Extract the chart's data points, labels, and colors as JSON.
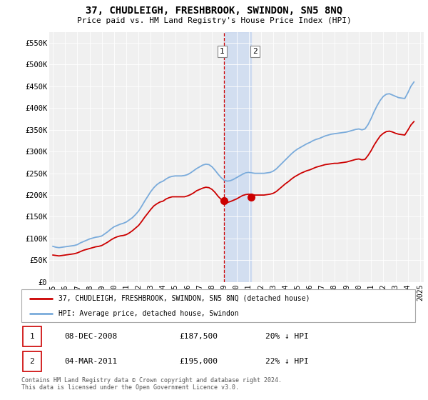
{
  "title": "37, CHUDLEIGH, FRESHBROOK, SWINDON, SN5 8NQ",
  "subtitle": "Price paid vs. HM Land Registry's House Price Index (HPI)",
  "ylim": [
    0,
    575000
  ],
  "yticks": [
    0,
    50000,
    100000,
    150000,
    200000,
    250000,
    300000,
    350000,
    400000,
    450000,
    500000,
    550000
  ],
  "ytick_labels": [
    "£0",
    "£50K",
    "£100K",
    "£150K",
    "£200K",
    "£250K",
    "£300K",
    "£350K",
    "£400K",
    "£450K",
    "£500K",
    "£550K"
  ],
  "background_color": "#f0f0f0",
  "grid_color": "#ffffff",
  "hpi_color": "#7aabdb",
  "price_color": "#cc0000",
  "shade_color": "#c8d8f0",
  "transaction_dot_color": "#cc0000",
  "t1_x": 2008.958,
  "t1_y": 187500,
  "t2_x": 2011.167,
  "t2_y": 195000,
  "transactions": [
    {
      "label": "1",
      "display": "08-DEC-2008",
      "price_str": "£187,500",
      "hpi_note": "20% ↓ HPI"
    },
    {
      "label": "2",
      "display": "04-MAR-2011",
      "price_str": "£195,000",
      "hpi_note": "22% ↓ HPI"
    }
  ],
  "legend_label_red": "37, CHUDLEIGH, FRESHBROOK, SWINDON, SN5 8NQ (detached house)",
  "legend_label_blue": "HPI: Average price, detached house, Swindon",
  "footer": "Contains HM Land Registry data © Crown copyright and database right 2024.\nThis data is licensed under the Open Government Licence v3.0.",
  "hpi_data_years": [
    1995.0,
    1995.25,
    1995.5,
    1995.75,
    1996.0,
    1996.25,
    1996.5,
    1996.75,
    1997.0,
    1997.25,
    1997.5,
    1997.75,
    1998.0,
    1998.25,
    1998.5,
    1998.75,
    1999.0,
    1999.25,
    1999.5,
    1999.75,
    2000.0,
    2000.25,
    2000.5,
    2000.75,
    2001.0,
    2001.25,
    2001.5,
    2001.75,
    2002.0,
    2002.25,
    2002.5,
    2002.75,
    2003.0,
    2003.25,
    2003.5,
    2003.75,
    2004.0,
    2004.25,
    2004.5,
    2004.75,
    2005.0,
    2005.25,
    2005.5,
    2005.75,
    2006.0,
    2006.25,
    2006.5,
    2006.75,
    2007.0,
    2007.25,
    2007.5,
    2007.75,
    2008.0,
    2008.25,
    2008.5,
    2008.75,
    2009.0,
    2009.25,
    2009.5,
    2009.75,
    2010.0,
    2010.25,
    2010.5,
    2010.75,
    2011.0,
    2011.25,
    2011.5,
    2011.75,
    2012.0,
    2012.25,
    2012.5,
    2012.75,
    2013.0,
    2013.25,
    2013.5,
    2013.75,
    2014.0,
    2014.25,
    2014.5,
    2014.75,
    2015.0,
    2015.25,
    2015.5,
    2015.75,
    2016.0,
    2016.25,
    2016.5,
    2016.75,
    2017.0,
    2017.25,
    2017.5,
    2017.75,
    2018.0,
    2018.25,
    2018.5,
    2018.75,
    2019.0,
    2019.25,
    2019.5,
    2019.75,
    2020.0,
    2020.25,
    2020.5,
    2020.75,
    2021.0,
    2021.25,
    2021.5,
    2021.75,
    2022.0,
    2022.25,
    2022.5,
    2022.75,
    2023.0,
    2023.25,
    2023.5,
    2023.75,
    2024.0,
    2024.25,
    2024.5
  ],
  "hpi_data_values": [
    82000,
    80000,
    79000,
    80000,
    81000,
    82000,
    83000,
    84000,
    86000,
    90000,
    93000,
    96000,
    99000,
    101000,
    103000,
    104000,
    106000,
    111000,
    116000,
    122000,
    127000,
    130000,
    133000,
    135000,
    138000,
    143000,
    148000,
    155000,
    163000,
    174000,
    186000,
    197000,
    208000,
    217000,
    224000,
    229000,
    232000,
    237000,
    241000,
    243000,
    244000,
    244000,
    244000,
    245000,
    247000,
    251000,
    256000,
    261000,
    265000,
    269000,
    271000,
    270000,
    265000,
    257000,
    248000,
    240000,
    234000,
    232000,
    233000,
    236000,
    240000,
    244000,
    248000,
    251000,
    252000,
    251000,
    250000,
    250000,
    250000,
    250000,
    251000,
    252000,
    255000,
    260000,
    267000,
    274000,
    281000,
    288000,
    295000,
    301000,
    306000,
    310000,
    314000,
    318000,
    321000,
    325000,
    328000,
    330000,
    333000,
    336000,
    338000,
    340000,
    341000,
    342000,
    343000,
    344000,
    345000,
    347000,
    349000,
    351000,
    352000,
    350000,
    352000,
    362000,
    376000,
    392000,
    406000,
    418000,
    427000,
    432000,
    433000,
    430000,
    427000,
    424000,
    423000,
    422000,
    435000,
    450000,
    460000
  ],
  "pp_data_years": [
    1995.0,
    1995.25,
    1995.5,
    1995.75,
    1996.0,
    1996.25,
    1996.5,
    1996.75,
    1997.0,
    1997.25,
    1997.5,
    1997.75,
    1998.0,
    1998.25,
    1998.5,
    1998.75,
    1999.0,
    1999.25,
    1999.5,
    1999.75,
    2000.0,
    2000.25,
    2000.5,
    2000.75,
    2001.0,
    2001.25,
    2001.5,
    2001.75,
    2002.0,
    2002.25,
    2002.5,
    2002.75,
    2003.0,
    2003.25,
    2003.5,
    2003.75,
    2004.0,
    2004.25,
    2004.5,
    2004.75,
    2005.0,
    2005.25,
    2005.5,
    2005.75,
    2006.0,
    2006.25,
    2006.5,
    2006.75,
    2007.0,
    2007.25,
    2007.5,
    2007.75,
    2008.0,
    2008.25,
    2008.5,
    2008.75,
    2009.0,
    2009.25,
    2009.5,
    2009.75,
    2010.0,
    2010.25,
    2010.5,
    2010.75,
    2011.0,
    2011.25,
    2011.5,
    2011.75,
    2012.0,
    2012.25,
    2012.5,
    2012.75,
    2013.0,
    2013.25,
    2013.5,
    2013.75,
    2014.0,
    2014.25,
    2014.5,
    2014.75,
    2015.0,
    2015.25,
    2015.5,
    2015.75,
    2016.0,
    2016.25,
    2016.5,
    2016.75,
    2017.0,
    2017.25,
    2017.5,
    2017.75,
    2018.0,
    2018.25,
    2018.5,
    2018.75,
    2019.0,
    2019.25,
    2019.5,
    2019.75,
    2020.0,
    2020.25,
    2020.5,
    2020.75,
    2021.0,
    2021.25,
    2021.5,
    2021.75,
    2022.0,
    2022.25,
    2022.5,
    2022.75,
    2023.0,
    2023.25,
    2023.5,
    2023.75,
    2024.0,
    2024.25,
    2024.5
  ],
  "pp_data_values": [
    62000,
    61000,
    60000,
    61000,
    62000,
    63000,
    64000,
    65000,
    67000,
    70000,
    73000,
    75000,
    77000,
    79000,
    81000,
    82000,
    84000,
    88000,
    92000,
    97000,
    101000,
    104000,
    106000,
    107000,
    109000,
    113000,
    118000,
    124000,
    130000,
    139000,
    149000,
    158000,
    167000,
    175000,
    180000,
    184000,
    186000,
    191000,
    194000,
    196000,
    196000,
    196000,
    196000,
    196000,
    198000,
    201000,
    205000,
    210000,
    213000,
    216000,
    218000,
    217000,
    213000,
    206000,
    197000,
    190000,
    185000,
    183000,
    185000,
    188000,
    191000,
    195000,
    199000,
    201000,
    202000,
    201000,
    200000,
    200000,
    200000,
    200000,
    201000,
    202000,
    204000,
    208000,
    214000,
    220000,
    226000,
    231000,
    237000,
    242000,
    246000,
    250000,
    253000,
    256000,
    258000,
    261000,
    264000,
    266000,
    268000,
    270000,
    271000,
    272000,
    273000,
    273000,
    274000,
    275000,
    276000,
    278000,
    280000,
    282000,
    283000,
    281000,
    282000,
    291000,
    302000,
    315000,
    326000,
    336000,
    342000,
    346000,
    347000,
    345000,
    342000,
    340000,
    339000,
    338000,
    349000,
    361000,
    369000
  ],
  "x_tick_years": [
    1995,
    1996,
    1997,
    1998,
    1999,
    2000,
    2001,
    2002,
    2003,
    2004,
    2005,
    2006,
    2007,
    2008,
    2009,
    2010,
    2011,
    2012,
    2013,
    2014,
    2015,
    2016,
    2017,
    2018,
    2019,
    2020,
    2021,
    2022,
    2023,
    2024,
    2025
  ],
  "xlim_left": 1994.7,
  "xlim_right": 2025.3
}
